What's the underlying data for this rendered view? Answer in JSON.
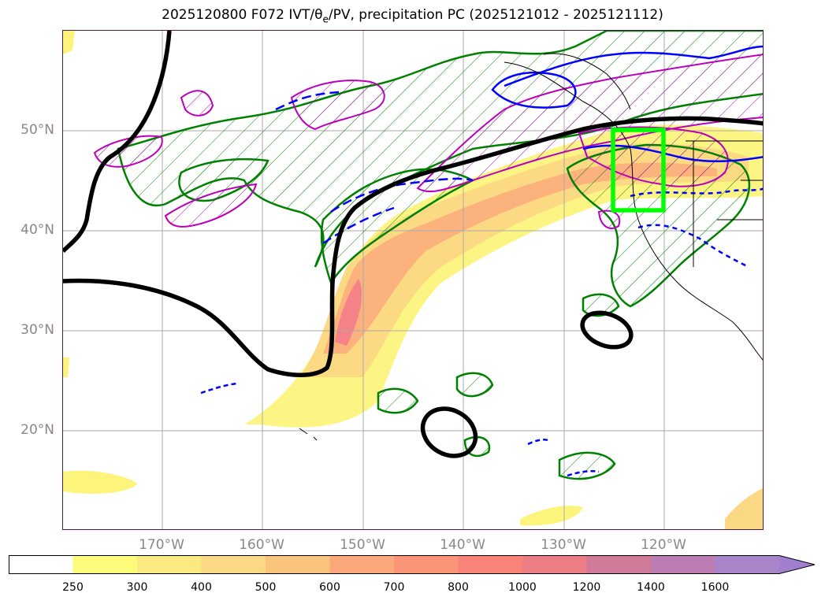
{
  "title": "2025120800 F072 IVT/θ",
  "title_sub": "e",
  "title_rest": "/PV, precipitation PC (2025121012 - 2025121112)",
  "lat_labels": [
    "50°N",
    "40°N",
    "30°N",
    "20°N"
  ],
  "lon_labels": [
    "170°W",
    "160°W",
    "150°W",
    "140°W",
    "130°W",
    "120°W"
  ],
  "colorbar": {
    "ticks": [
      "250",
      "300",
      "400",
      "500",
      "600",
      "700",
      "800",
      "1000",
      "1200",
      "1400",
      "1600"
    ],
    "colors": [
      "#ffffff",
      "#fdfb7a",
      "#fbe982",
      "#fbd883",
      "#fbc47e",
      "#fba97a",
      "#fb9578",
      "#fa8379",
      "#ee7e85",
      "#d17b9a",
      "#bc7db3",
      "#a984c8"
    ]
  },
  "map": {
    "ivt_color": "#f3bf60",
    "theta_e_color": "#008000",
    "pv_color": "#0000ff",
    "precip_color": "#bb00bb",
    "box_color": "#00ff00",
    "black_line_color": "#000000"
  }
}
